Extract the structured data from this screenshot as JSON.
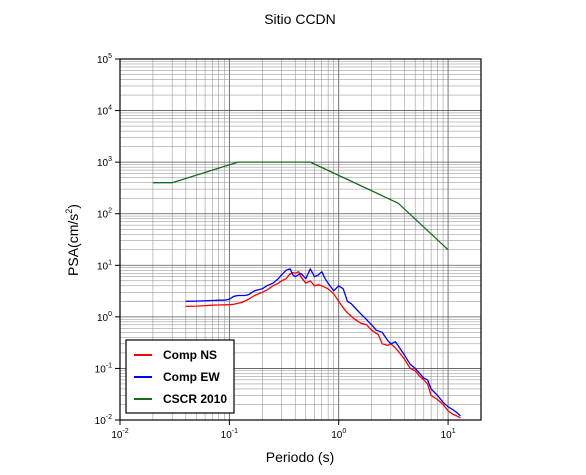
{
  "chart_data": {
    "type": "line",
    "title": "Sitio CCDN",
    "xlabel": "Periodo (s)",
    "ylabel_main": "PSA(cm/s",
    "ylabel_sup": "2",
    "ylabel_close": ")",
    "x_scale": "log",
    "y_scale": "log",
    "xlim": [
      0.01,
      20
    ],
    "ylim": [
      0.01,
      100000
    ],
    "grid": true,
    "legend_position": "bottom-left",
    "x_ticks": [
      {
        "base": "10",
        "exp": "-2"
      },
      {
        "base": "10",
        "exp": "-1"
      },
      {
        "base": "10",
        "exp": "0"
      },
      {
        "base": "10",
        "exp": "1"
      }
    ],
    "y_ticks": [
      {
        "base": "10",
        "exp": "-2"
      },
      {
        "base": "10",
        "exp": "-1"
      },
      {
        "base": "10",
        "exp": "0"
      },
      {
        "base": "10",
        "exp": "1"
      },
      {
        "base": "10",
        "exp": "2"
      },
      {
        "base": "10",
        "exp": "3"
      },
      {
        "base": "10",
        "exp": "4"
      },
      {
        "base": "10",
        "exp": "5"
      }
    ],
    "series": [
      {
        "name": "Comp NS",
        "color": "#ff0000",
        "points": [
          [
            0.04,
            1.6
          ],
          [
            0.05,
            1.62
          ],
          [
            0.06,
            1.65
          ],
          [
            0.07,
            1.68
          ],
          [
            0.08,
            1.7
          ],
          [
            0.1,
            1.72
          ],
          [
            0.11,
            1.75
          ],
          [
            0.13,
            1.9
          ],
          [
            0.15,
            2.2
          ],
          [
            0.17,
            2.6
          ],
          [
            0.2,
            3.0
          ],
          [
            0.22,
            3.3
          ],
          [
            0.25,
            4.0
          ],
          [
            0.28,
            4.5
          ],
          [
            0.3,
            5.0
          ],
          [
            0.33,
            5.5
          ],
          [
            0.35,
            6.5
          ],
          [
            0.38,
            7.2
          ],
          [
            0.4,
            7.0
          ],
          [
            0.43,
            7.5
          ],
          [
            0.45,
            6.0
          ],
          [
            0.5,
            4.5
          ],
          [
            0.55,
            5.0
          ],
          [
            0.6,
            4.0
          ],
          [
            0.65,
            4.2
          ],
          [
            0.7,
            4.0
          ],
          [
            0.8,
            3.5
          ],
          [
            0.9,
            2.8
          ],
          [
            1.0,
            2.0
          ],
          [
            1.1,
            1.5
          ],
          [
            1.2,
            1.2
          ],
          [
            1.4,
            0.9
          ],
          [
            1.6,
            0.75
          ],
          [
            1.8,
            0.7
          ],
          [
            2.0,
            0.55
          ],
          [
            2.3,
            0.45
          ],
          [
            2.5,
            0.3
          ],
          [
            2.8,
            0.28
          ],
          [
            3.0,
            0.3
          ],
          [
            3.3,
            0.25
          ],
          [
            3.6,
            0.2
          ],
          [
            4.0,
            0.15
          ],
          [
            4.5,
            0.1
          ],
          [
            5.0,
            0.09
          ],
          [
            5.5,
            0.07
          ],
          [
            6.0,
            0.06
          ],
          [
            6.5,
            0.05
          ],
          [
            7.0,
            0.03
          ],
          [
            8.0,
            0.025
          ],
          [
            9.0,
            0.02
          ],
          [
            10.0,
            0.015
          ],
          [
            11.0,
            0.013
          ],
          [
            12.0,
            0.012
          ],
          [
            13.0,
            0.011
          ]
        ]
      },
      {
        "name": "Comp EW",
        "color": "#0000ff",
        "points": [
          [
            0.04,
            2.0
          ],
          [
            0.05,
            2.02
          ],
          [
            0.06,
            2.05
          ],
          [
            0.07,
            2.08
          ],
          [
            0.08,
            2.1
          ],
          [
            0.09,
            2.1
          ],
          [
            0.1,
            2.2
          ],
          [
            0.11,
            2.5
          ],
          [
            0.12,
            2.6
          ],
          [
            0.14,
            2.6
          ],
          [
            0.15,
            2.7
          ],
          [
            0.17,
            3.2
          ],
          [
            0.2,
            3.5
          ],
          [
            0.22,
            4.0
          ],
          [
            0.25,
            4.5
          ],
          [
            0.28,
            5.5
          ],
          [
            0.3,
            6.5
          ],
          [
            0.33,
            8.0
          ],
          [
            0.36,
            8.5
          ],
          [
            0.38,
            6.5
          ],
          [
            0.4,
            6.0
          ],
          [
            0.45,
            7.0
          ],
          [
            0.5,
            5.5
          ],
          [
            0.55,
            8.5
          ],
          [
            0.6,
            6.0
          ],
          [
            0.65,
            6.5
          ],
          [
            0.7,
            7.5
          ],
          [
            0.75,
            5.5
          ],
          [
            0.8,
            4.5
          ],
          [
            0.9,
            3.2
          ],
          [
            1.0,
            4.0
          ],
          [
            1.1,
            3.5
          ],
          [
            1.2,
            2.0
          ],
          [
            1.3,
            1.8
          ],
          [
            1.5,
            1.3
          ],
          [
            1.7,
            1.0
          ],
          [
            2.0,
            0.7
          ],
          [
            2.2,
            0.55
          ],
          [
            2.5,
            0.5
          ],
          [
            2.8,
            0.35
          ],
          [
            3.0,
            0.3
          ],
          [
            3.3,
            0.33
          ],
          [
            3.6,
            0.25
          ],
          [
            4.0,
            0.18
          ],
          [
            4.5,
            0.12
          ],
          [
            5.0,
            0.1
          ],
          [
            5.5,
            0.08
          ],
          [
            6.0,
            0.065
          ],
          [
            6.5,
            0.06
          ],
          [
            7.0,
            0.04
          ],
          [
            8.0,
            0.03
          ],
          [
            9.0,
            0.022
          ],
          [
            10.0,
            0.018
          ],
          [
            11.0,
            0.016
          ],
          [
            12.0,
            0.014
          ],
          [
            13.0,
            0.012
          ]
        ]
      },
      {
        "name": "CSCR 2010",
        "color": "#1a6b1a",
        "points": [
          [
            0.02,
            400
          ],
          [
            0.03,
            400
          ],
          [
            0.12,
            1000
          ],
          [
            0.55,
            1000
          ],
          [
            3.5,
            160
          ],
          [
            10.0,
            20
          ]
        ]
      }
    ]
  }
}
